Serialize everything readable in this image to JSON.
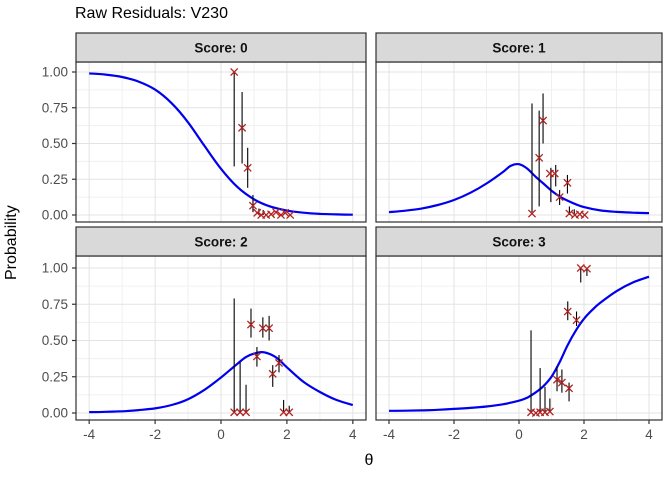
{
  "title": "Raw Residuals: V230",
  "ylabel": "Probability",
  "xlabel": "θ",
  "colors": {
    "curve": "#0000EE",
    "point": "#B22222",
    "segment": "#000000",
    "strip_bg": "#D9D9D9",
    "panel_border": "#2F2F2F",
    "grid_major": "#E3E3E3",
    "grid_minor": "#F0F0F0",
    "tick": "#333333",
    "tick_text": "#4D4D4D"
  },
  "axes": {
    "x_tick_values": [
      -4,
      -2,
      0,
      2,
      4
    ],
    "x_tick_labels": [
      "-4",
      "-2",
      "0",
      "2",
      "4"
    ],
    "x_minor_values": [
      -3,
      -1,
      1,
      3
    ],
    "y_tick_values": [
      0,
      0.25,
      0.5,
      0.75,
      1.0
    ],
    "y_tick_labels": [
      "0.00",
      "0.25",
      "0.50",
      "0.75",
      "1.00"
    ],
    "y_minor_values": [
      0.125,
      0.375,
      0.625,
      0.875
    ],
    "x_range": [
      -4.4,
      4.4
    ],
    "y_range": [
      0,
      1
    ],
    "grid": true,
    "legend": "none"
  },
  "chart_data": {
    "type": "line",
    "description": "Faceted item characteristic curves (blue line) with observed raw residual points (dark red x) and vertical interval segments (black), one facet per score category",
    "xlabel": "θ",
    "ylabel": "Probability",
    "point_shape": "x-cross",
    "facets": [
      {
        "label": "Score: 0",
        "curve": [
          [
            -4,
            0.99
          ],
          [
            -3.5,
            0.982
          ],
          [
            -3,
            0.965
          ],
          [
            -2.5,
            0.933
          ],
          [
            -2,
            0.877
          ],
          [
            -1.5,
            0.782
          ],
          [
            -1,
            0.648
          ],
          [
            -0.5,
            0.483
          ],
          [
            0,
            0.323
          ],
          [
            0.5,
            0.195
          ],
          [
            1,
            0.11
          ],
          [
            1.5,
            0.059
          ],
          [
            2,
            0.031
          ],
          [
            2.5,
            0.016
          ],
          [
            3,
            0.008
          ],
          [
            3.5,
            0.004
          ],
          [
            4,
            0.002
          ]
        ],
        "points": [
          [
            0.4,
            1.0
          ],
          [
            0.64,
            0.61
          ],
          [
            0.81,
            0.33
          ],
          [
            0.97,
            0.065
          ],
          [
            1.1,
            0.015
          ],
          [
            1.22,
            0.0
          ],
          [
            1.37,
            0.0
          ],
          [
            1.52,
            0.005
          ],
          [
            1.67,
            0.02
          ],
          [
            1.82,
            0.0
          ],
          [
            1.95,
            0.015
          ],
          [
            2.1,
            0.0
          ]
        ],
        "segments": [
          [
            0.4,
            0.34,
            1.0
          ],
          [
            0.64,
            0.36,
            0.86
          ],
          [
            0.81,
            0.19,
            0.47
          ],
          [
            0.97,
            0.02,
            0.14
          ],
          [
            1.15,
            0.0,
            0.045
          ],
          [
            1.28,
            0.0,
            0.035
          ]
        ]
      },
      {
        "label": "Score: 1",
        "curve": [
          [
            -4,
            0.02
          ],
          [
            -3.5,
            0.03
          ],
          [
            -3,
            0.045
          ],
          [
            -2.5,
            0.07
          ],
          [
            -2,
            0.105
          ],
          [
            -1.5,
            0.155
          ],
          [
            -1,
            0.22
          ],
          [
            -0.5,
            0.3
          ],
          [
            -0.25,
            0.345
          ],
          [
            0,
            0.355
          ],
          [
            0.25,
            0.325
          ],
          [
            0.5,
            0.27
          ],
          [
            0.75,
            0.22
          ],
          [
            1,
            0.17
          ],
          [
            1.25,
            0.13
          ],
          [
            1.5,
            0.1
          ],
          [
            1.75,
            0.075
          ],
          [
            2,
            0.055
          ],
          [
            2.5,
            0.032
          ],
          [
            3,
            0.022
          ],
          [
            3.5,
            0.016
          ],
          [
            4,
            0.013
          ]
        ],
        "points": [
          [
            0.4,
            0.01
          ],
          [
            0.62,
            0.4
          ],
          [
            0.74,
            0.66
          ],
          [
            0.95,
            0.29
          ],
          [
            1.1,
            0.29
          ],
          [
            1.25,
            0.125
          ],
          [
            1.49,
            0.225
          ],
          [
            1.55,
            0.01
          ],
          [
            1.72,
            0.0
          ],
          [
            1.87,
            0.005
          ],
          [
            2.02,
            0.0
          ]
        ],
        "segments": [
          [
            0.4,
            0.02,
            0.78
          ],
          [
            0.62,
            0.06,
            0.73
          ],
          [
            0.74,
            0.5,
            0.85
          ],
          [
            0.98,
            0.09,
            0.33
          ],
          [
            1.13,
            0.2,
            0.35
          ],
          [
            1.25,
            0.07,
            0.175
          ],
          [
            1.49,
            0.15,
            0.28
          ],
          [
            1.55,
            0.0,
            0.06
          ],
          [
            1.7,
            0.0,
            0.04
          ]
        ]
      },
      {
        "label": "Score: 2",
        "curve": [
          [
            -4,
            0.006
          ],
          [
            -3.5,
            0.008
          ],
          [
            -3,
            0.012
          ],
          [
            -2.5,
            0.02
          ],
          [
            -2,
            0.032
          ],
          [
            -1.5,
            0.055
          ],
          [
            -1,
            0.095
          ],
          [
            -0.5,
            0.16
          ],
          [
            0,
            0.245
          ],
          [
            0.5,
            0.34
          ],
          [
            0.75,
            0.385
          ],
          [
            1,
            0.41
          ],
          [
            1.25,
            0.42
          ],
          [
            1.5,
            0.405
          ],
          [
            1.75,
            0.37
          ],
          [
            2,
            0.315
          ],
          [
            2.5,
            0.215
          ],
          [
            3,
            0.145
          ],
          [
            3.5,
            0.09
          ],
          [
            4,
            0.055
          ]
        ],
        "points": [
          [
            0.4,
            0.005
          ],
          [
            0.58,
            0.005
          ],
          [
            0.76,
            0.005
          ],
          [
            0.91,
            0.61
          ],
          [
            1.09,
            0.39
          ],
          [
            1.27,
            0.585
          ],
          [
            1.46,
            0.585
          ],
          [
            1.57,
            0.27
          ],
          [
            1.76,
            0.345
          ],
          [
            1.9,
            0.005
          ],
          [
            2.07,
            0.005
          ]
        ],
        "segments": [
          [
            0.4,
            0.0,
            0.79
          ],
          [
            0.58,
            0.01,
            0.35
          ],
          [
            0.76,
            0.0,
            0.195
          ],
          [
            0.91,
            0.52,
            0.72
          ],
          [
            1.09,
            0.32,
            0.455
          ],
          [
            1.27,
            0.52,
            0.66
          ],
          [
            1.46,
            0.5,
            0.67
          ],
          [
            1.57,
            0.18,
            0.33
          ],
          [
            1.76,
            0.28,
            0.4
          ],
          [
            1.9,
            0.0,
            0.09
          ],
          [
            2.07,
            0.0,
            0.05
          ]
        ]
      },
      {
        "label": "Score: 3",
        "curve": [
          [
            -4,
            0.015
          ],
          [
            -3.5,
            0.016
          ],
          [
            -3,
            0.018
          ],
          [
            -2.5,
            0.022
          ],
          [
            -2,
            0.028
          ],
          [
            -1.5,
            0.035
          ],
          [
            -1,
            0.045
          ],
          [
            -0.5,
            0.06
          ],
          [
            0,
            0.085
          ],
          [
            0.25,
            0.105
          ],
          [
            0.5,
            0.14
          ],
          [
            0.75,
            0.185
          ],
          [
            1,
            0.25
          ],
          [
            1.25,
            0.35
          ],
          [
            1.5,
            0.47
          ],
          [
            1.75,
            0.57
          ],
          [
            2,
            0.65
          ],
          [
            2.25,
            0.71
          ],
          [
            2.5,
            0.76
          ],
          [
            3,
            0.84
          ],
          [
            3.5,
            0.9
          ],
          [
            4,
            0.94
          ]
        ],
        "points": [
          [
            0.37,
            0.005
          ],
          [
            0.52,
            0.0
          ],
          [
            0.65,
            0.005
          ],
          [
            0.8,
            0.005
          ],
          [
            0.95,
            0.01
          ],
          [
            1.17,
            0.23
          ],
          [
            1.32,
            0.21
          ],
          [
            1.54,
            0.17
          ],
          [
            1.5,
            0.7
          ],
          [
            1.77,
            0.64
          ],
          [
            1.9,
            1.0
          ],
          [
            2.09,
            0.995
          ]
        ],
        "segments": [
          [
            0.37,
            0.01,
            0.57
          ],
          [
            0.65,
            0.01,
            0.31
          ],
          [
            0.8,
            0.0,
            0.18
          ],
          [
            0.95,
            0.01,
            0.1
          ],
          [
            1.17,
            0.15,
            0.32
          ],
          [
            1.32,
            0.14,
            0.3
          ],
          [
            1.54,
            0.08,
            0.21
          ],
          [
            1.5,
            0.64,
            0.77
          ],
          [
            1.77,
            0.6,
            0.7
          ],
          [
            1.9,
            0.9,
            1.0
          ],
          [
            2.09,
            0.945,
            1.0
          ]
        ]
      }
    ]
  }
}
